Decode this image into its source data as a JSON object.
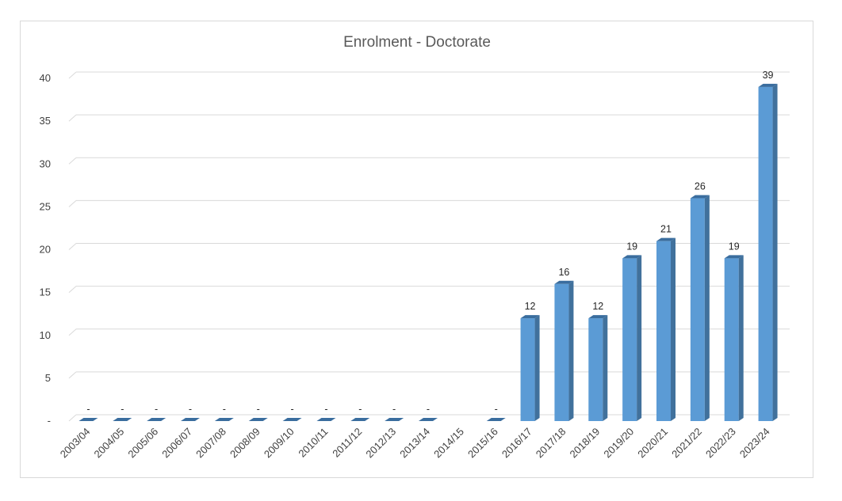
{
  "chart_data": {
    "type": "bar",
    "title": "Enrolment - Doctorate",
    "xlabel": "",
    "ylabel": "",
    "categories": [
      "2003/04",
      "2004/05",
      "2005/06",
      "2006/07",
      "2007/08",
      "2008/09",
      "2009/10",
      "2010/11",
      "2011/12",
      "2012/13",
      "2013/14",
      "2014/15",
      "2015/16",
      "2016/17",
      "2017/18",
      "2018/19",
      "2019/20",
      "2020/21",
      "2021/22",
      "2022/23",
      "2023/24"
    ],
    "values": [
      0,
      0,
      0,
      0,
      0,
      0,
      0,
      0,
      0,
      0,
      0,
      null,
      0,
      12,
      16,
      12,
      19,
      21,
      26,
      19,
      39
    ],
    "data_labels": [
      "-",
      "-",
      "-",
      "-",
      "-",
      "-",
      "-",
      "-",
      "-",
      "-",
      "-",
      "",
      "-",
      "12",
      "16",
      "12",
      "19",
      "21",
      "26",
      "19",
      "39"
    ],
    "y_ticks": [
      0,
      5,
      10,
      15,
      20,
      25,
      30,
      35,
      40
    ],
    "y_tick_labels": [
      "-",
      "5",
      "10",
      "15",
      "20",
      "25",
      "30",
      "35",
      "40"
    ],
    "ylim": [
      0,
      40
    ],
    "grid": true,
    "legend": "none",
    "colors": {
      "bar_front": "#5b9bd5",
      "bar_side": "#41719c",
      "bar_top": "#3a6d9e",
      "grid": "#d9d9d9",
      "title": "#595959"
    }
  }
}
